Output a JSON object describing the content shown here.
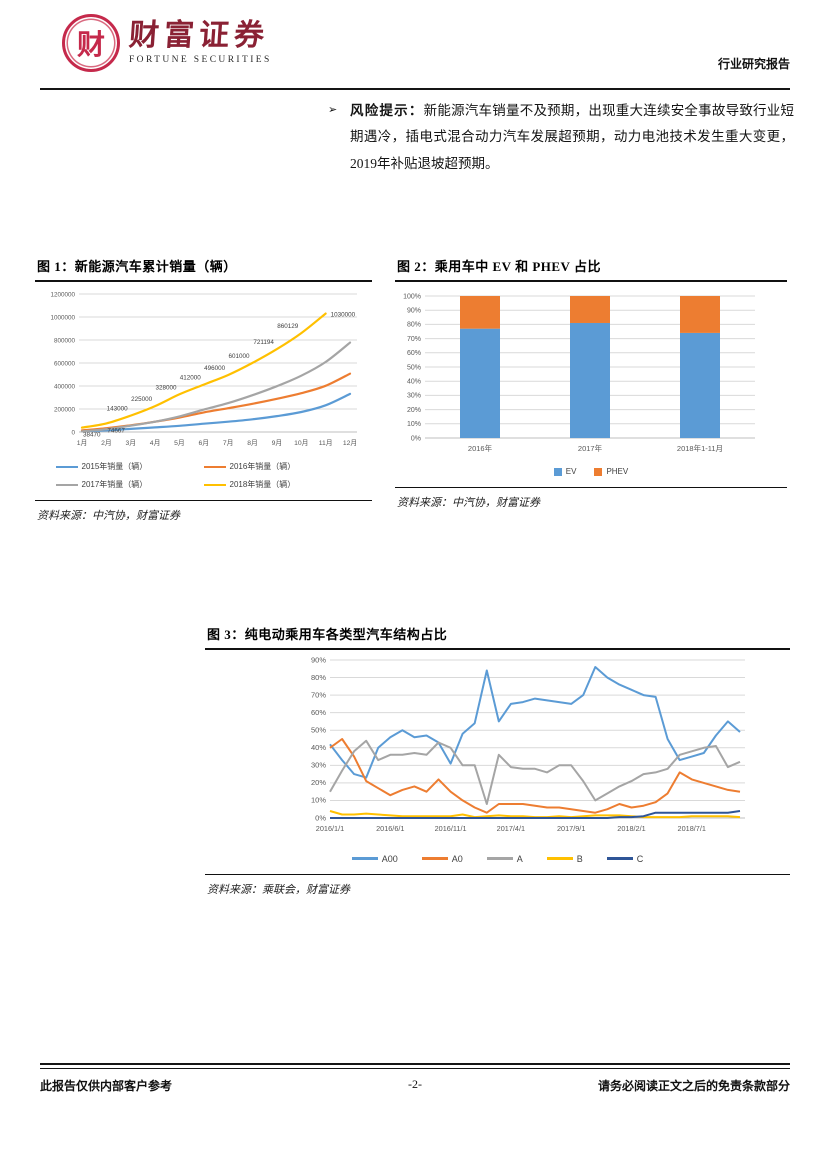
{
  "header": {
    "seal_char": "财",
    "brand_cn": "财富证券",
    "brand_en": "FORTUNE SECURITIES",
    "brand_color": "#C5294B",
    "report_type": "行业研究报告"
  },
  "risk": {
    "bullet": "➢",
    "label": "风险提示：",
    "text": "新能源汽车销量不及预期，出现重大连续安全事故导致行业短期遇冷，插电式混合动力汽车发展超预期，动力电池技术发生重大变更，2019年补贴退坡超预期。"
  },
  "figure1": {
    "title": "图 1：新能源汽车累计销量（辆）",
    "source": "资料来源：中汽协，财富证券"
  },
  "figure2": {
    "title": "图 2：乘用车中 EV 和 PHEV 占比",
    "source": "资料来源：中汽协，财富证券"
  },
  "figure3": {
    "title": "图 3：纯电动乘用车各类型汽车结构占比",
    "source": "资料来源：乘联会，财富证券"
  },
  "footer": {
    "left": "此报告仅供内部客户参考",
    "page": "-2-",
    "right": "请务必阅读正文之后的免责条款部分"
  },
  "chart_data": [
    {
      "type": "line",
      "title": "新能源汽车累计销量（辆）",
      "categories": [
        "1月",
        "2月",
        "3月",
        "4月",
        "5月",
        "6月",
        "7月",
        "8月",
        "9月",
        "10月",
        "11月",
        "12月"
      ],
      "ylim": [
        0,
        1200000
      ],
      "ytick": 200000,
      "grid": true,
      "legend_position": "bottom",
      "series": [
        {
          "name": "2015年销量（辆）",
          "color": "#5B9BD5",
          "values": [
            7000,
            14000,
            27000,
            40000,
            54000,
            72000,
            90000,
            110000,
            138000,
            174000,
            232000,
            331000
          ]
        },
        {
          "name": "2016年销量（辆）",
          "color": "#ED7D31",
          "values": [
            14000,
            33000,
            58000,
            90000,
            126000,
            170000,
            207000,
            245000,
            289000,
            337000,
            402000,
            507000
          ]
        },
        {
          "name": "2017年销量（辆）",
          "color": "#A5A5A5",
          "values": [
            5600,
            24000,
            55000,
            90000,
            136000,
            195000,
            251000,
            320000,
            398000,
            490000,
            609000,
            777000
          ]
        },
        {
          "name": "2018年销量（辆）",
          "color": "#FFC000",
          "values": [
            38470,
            74667,
            143000,
            225000,
            328000,
            412000,
            496000,
            601000,
            721194,
            860129,
            1030000,
            null
          ],
          "data_labels": [
            "38470",
            "74667",
            "143000",
            "225000",
            "328000",
            "412000",
            "496000",
            "601000",
            "721194",
            "860129",
            "1030000"
          ]
        }
      ]
    },
    {
      "type": "bar",
      "subtype": "stacked-percent",
      "title": "乘用车中 EV 和 PHEV 占比",
      "categories": [
        "2016年",
        "2017年",
        "2018年1-11月"
      ],
      "ylim": [
        0,
        100
      ],
      "ytick": 10,
      "grid": true,
      "legend_position": "bottom",
      "series": [
        {
          "name": "EV",
          "color": "#5B9BD5",
          "values": [
            77,
            81,
            74
          ]
        },
        {
          "name": "PHEV",
          "color": "#ED7D31",
          "values": [
            23,
            19,
            26
          ]
        }
      ]
    },
    {
      "type": "line",
      "title": "纯电动乘用车各类型汽车结构占比",
      "categories": [
        "2016/1",
        "2016/2",
        "2016/3",
        "2016/4",
        "2016/5",
        "2016/6",
        "2016/7",
        "2016/8",
        "2016/9",
        "2016/10",
        "2016/11",
        "2016/12",
        "2017/1",
        "2017/2",
        "2017/3",
        "2017/4",
        "2017/5",
        "2017/6",
        "2017/7",
        "2017/8",
        "2017/9",
        "2017/10",
        "2017/11",
        "2017/12",
        "2018/1",
        "2018/2",
        "2018/3",
        "2018/4",
        "2018/5",
        "2018/6",
        "2018/7",
        "2018/8",
        "2018/9",
        "2018/10",
        "2018/11"
      ],
      "x_tick_labels": [
        "2016/1/1",
        "2016/6/1",
        "2016/11/1",
        "2017/4/1",
        "2017/9/1",
        "2018/2/1",
        "2018/7/1"
      ],
      "x_tick_indices": [
        0,
        5,
        10,
        15,
        20,
        25,
        30
      ],
      "ylim": [
        0,
        90
      ],
      "ytick": 10,
      "grid": true,
      "legend_position": "bottom",
      "series": [
        {
          "name": "A00",
          "color": "#5B9BD5",
          "values": [
            42,
            33,
            25,
            23,
            40,
            46,
            50,
            46,
            47,
            43,
            31,
            48,
            54,
            84,
            55,
            65,
            66,
            68,
            67,
            66,
            65,
            70,
            86,
            80,
            76,
            73,
            70,
            69,
            45,
            33,
            35,
            37,
            47,
            55,
            49
          ]
        },
        {
          "name": "A0",
          "color": "#ED7D31",
          "values": [
            40,
            45,
            35,
            21,
            17,
            13,
            16,
            18,
            15,
            22,
            15,
            10,
            6,
            3,
            8,
            8,
            8,
            7,
            6,
            6,
            5,
            4,
            3,
            5,
            8,
            6,
            7,
            9,
            14,
            26,
            22,
            20,
            18,
            16,
            15
          ]
        },
        {
          "name": "A",
          "color": "#A5A5A5",
          "values": [
            15,
            27,
            38,
            44,
            33,
            36,
            36,
            37,
            36,
            43,
            40,
            30,
            30,
            8,
            36,
            29,
            28,
            28,
            26,
            30,
            30,
            21,
            10,
            14,
            18,
            21,
            25,
            26,
            28,
            36,
            38,
            40,
            41,
            29,
            32
          ]
        },
        {
          "name": "B",
          "color": "#FFC000",
          "values": [
            4,
            2,
            2,
            2.5,
            2,
            1.5,
            1,
            1,
            1,
            1,
            1,
            2,
            0.5,
            1,
            1.5,
            1,
            1,
            0.5,
            0.5,
            1,
            0.5,
            1,
            1.5,
            1.5,
            1.5,
            1,
            0.5,
            0.5,
            0.5,
            0.5,
            1,
            1,
            1,
            1,
            0.5
          ]
        },
        {
          "name": "C",
          "color": "#2F5597",
          "values": [
            0,
            0,
            0,
            0,
            0,
            0,
            0,
            0,
            0,
            0,
            0,
            0,
            0,
            0,
            0,
            0,
            0,
            0,
            0,
            0,
            0,
            0,
            0,
            0,
            0.5,
            0.5,
            1,
            3,
            3,
            3,
            3,
            3,
            3,
            3,
            4
          ]
        }
      ]
    }
  ]
}
